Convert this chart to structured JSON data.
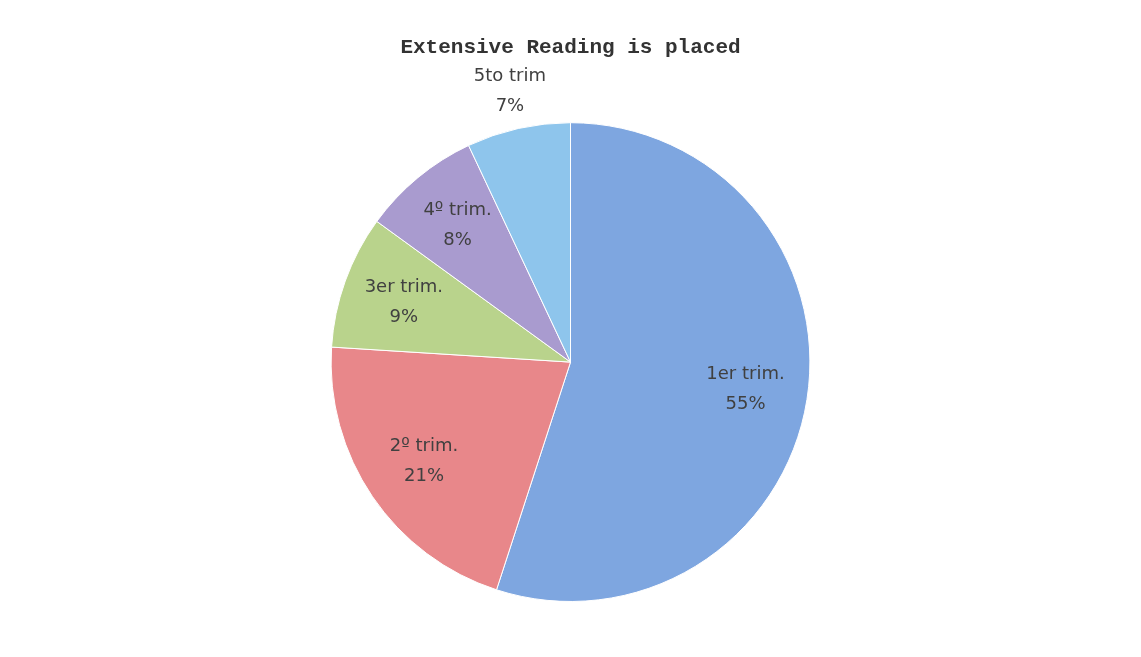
{
  "chart_data": {
    "type": "pie",
    "title": "Extensive Reading is placed",
    "categories": [
      "1er trim.",
      "2º trim.",
      "3er trim.",
      "4º trim.",
      "5to trim"
    ],
    "values": [
      55,
      21,
      9,
      8,
      7
    ],
    "value_labels": [
      "55%",
      "21%",
      "9%",
      "8%",
      "7%"
    ],
    "colors": [
      "#7ea6e0",
      "#e8878a",
      "#b9d38c",
      "#a99bcf",
      "#8ec5ec"
    ],
    "legend": false
  }
}
